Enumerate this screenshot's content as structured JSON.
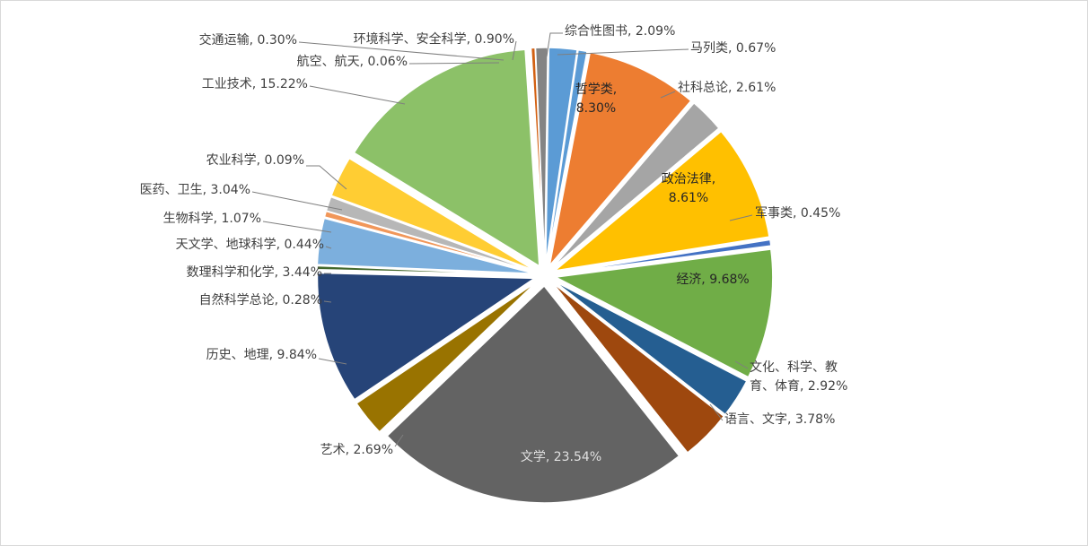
{
  "chart_data": {
    "type": "pie",
    "title": "",
    "legend": "none",
    "series": [
      {
        "name": "",
        "values": [
          2.09,
          0.67,
          8.3,
          2.61,
          8.61,
          0.45,
          9.68,
          2.92,
          3.78,
          23.54,
          2.69,
          9.84,
          0.28,
          3.44,
          0.44,
          1.07,
          3.04,
          0.09,
          15.22,
          0.06,
          0.3,
          0.9
        ]
      }
    ],
    "slices": [
      {
        "category": "综合性图书",
        "value": 2.09,
        "label": "综合性图书, 2.09%",
        "color": "#5b9bd5"
      },
      {
        "category": "马列类",
        "value": 0.67,
        "label": "马列类, 0.67%",
        "color": "#5b9bd5"
      },
      {
        "category": "哲学类",
        "value": 8.3,
        "label": "哲学类,\n8.30%",
        "color": "#ed7d31"
      },
      {
        "category": "社科总论",
        "value": 2.61,
        "label": "社科总论, 2.61%",
        "color": "#a5a5a5"
      },
      {
        "category": "政治法律",
        "value": 8.61,
        "label": "政治法律,\n8.61%",
        "color": "#ffc000"
      },
      {
        "category": "军事类",
        "value": 0.45,
        "label": "军事类, 0.45%",
        "color": "#4472c4"
      },
      {
        "category": "经济",
        "value": 9.68,
        "label": "经济, 9.68%",
        "color": "#70ad47"
      },
      {
        "category": "文化、科学、教育、体育",
        "value": 2.92,
        "label": "文化、科学、教\n育、体育, 2.92%",
        "color": "#255e91"
      },
      {
        "category": "语言、文字",
        "value": 3.78,
        "label": "语言、文字, 3.78%",
        "color": "#9e480e"
      },
      {
        "category": "文学",
        "value": 23.54,
        "label": "文学, 23.54%",
        "color": "#636363"
      },
      {
        "category": "艺术",
        "value": 2.69,
        "label": "艺术, 2.69%",
        "color": "#997300"
      },
      {
        "category": "历史、地理",
        "value": 9.84,
        "label": "历史、地理, 9.84%",
        "color": "#264478"
      },
      {
        "category": "自然科学总论",
        "value": 0.28,
        "label": "自然科学总论, 0.28%",
        "color": "#43682b"
      },
      {
        "category": "数理科学和化学",
        "value": 3.44,
        "label": "数理科学和化学, 3.44%",
        "color": "#7cafdd"
      },
      {
        "category": "天文学、地球科学",
        "value": 0.44,
        "label": "天文学、地球科学, 0.44%",
        "color": "#f1975a"
      },
      {
        "category": "生物科学",
        "value": 1.07,
        "label": "生物科学, 1.07%",
        "color": "#b7b7b7"
      },
      {
        "category": "医药、卫生",
        "value": 3.04,
        "label": "医药、卫生, 3.04%",
        "color": "#ffcd33"
      },
      {
        "category": "农业科学",
        "value": 0.09,
        "label": "农业科学, 0.09%",
        "color": "#698ed0"
      },
      {
        "category": "工业技术",
        "value": 15.22,
        "label": "工业技术, 15.22%",
        "color": "#8cc168"
      },
      {
        "category": "航空、航天",
        "value": 0.06,
        "label": "航空、航天, 0.06%",
        "color": "#327dc2"
      },
      {
        "category": "交通运输",
        "value": 0.3,
        "label": "交通运输, 0.30%",
        "color": "#d26012"
      },
      {
        "category": "环境科学、安全科学",
        "value": 0.9,
        "label": "环境科学、安全科学, 0.90%",
        "color": "#848484"
      }
    ]
  },
  "colors": {
    "text": "#404040",
    "leader_line": "#7f7f7f",
    "border": "#d9d9d9"
  }
}
